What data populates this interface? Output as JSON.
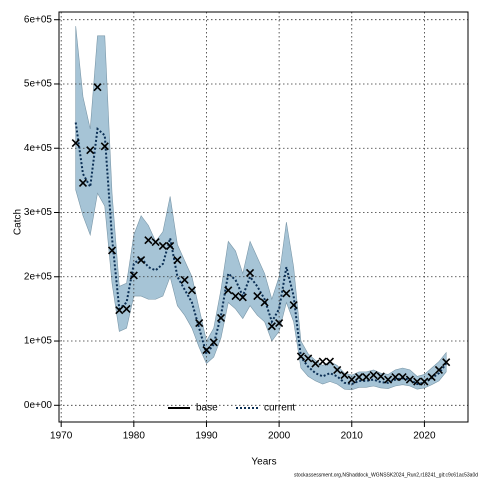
{
  "chart_data": {
    "type": "line",
    "xlabel": "Years",
    "ylabel": "Catch",
    "footer": "stockassessment.org,NShaddock_WGNSSK2024_Run2,r18241_git:c9c61ac53a0d",
    "x": [
      1972,
      1973,
      1974,
      1975,
      1976,
      1977,
      1978,
      1979,
      1980,
      1981,
      1982,
      1983,
      1984,
      1985,
      1986,
      1987,
      1988,
      1989,
      1990,
      1991,
      1992,
      1993,
      1994,
      1995,
      1996,
      1997,
      1998,
      1999,
      2000,
      2001,
      2002,
      2003,
      2004,
      2005,
      2006,
      2007,
      2008,
      2009,
      2010,
      2011,
      2012,
      2013,
      2014,
      2015,
      2016,
      2017,
      2018,
      2019,
      2020,
      2021,
      2022,
      2023
    ],
    "estimate": {
      "color": "#0b2f55",
      "dash": "dotted",
      "values": [
        440000,
        360000,
        340000,
        430000,
        420000,
        260000,
        150000,
        160000,
        220000,
        230000,
        215000,
        210000,
        220000,
        260000,
        200000,
        180000,
        160000,
        120000,
        80000,
        95000,
        140000,
        205000,
        195000,
        170000,
        200000,
        185000,
        165000,
        130000,
        150000,
        215000,
        170000,
        75000,
        60000,
        50000,
        45000,
        50000,
        45000,
        35000,
        33000,
        38000,
        38000,
        40000,
        36000,
        35000,
        40000,
        42000,
        40000,
        33000,
        35000,
        42000,
        50000,
        65000
      ]
    },
    "band": {
      "color": "#a6c4d6",
      "upper": [
        590000,
        480000,
        430000,
        575000,
        575000,
        330000,
        185000,
        190000,
        265000,
        295000,
        280000,
        255000,
        270000,
        325000,
        250000,
        225000,
        200000,
        150000,
        100000,
        120000,
        180000,
        255000,
        240000,
        205000,
        255000,
        230000,
        205000,
        165000,
        200000,
        285000,
        215000,
        100000,
        80000,
        70000,
        62000,
        68000,
        62000,
        50000,
        47000,
        52000,
        52000,
        55000,
        50000,
        48000,
        55000,
        58000,
        55000,
        45000,
        48000,
        58000,
        68000,
        82000
      ],
      "lower": [
        335000,
        295000,
        265000,
        330000,
        310000,
        190000,
        115000,
        120000,
        170000,
        170000,
        165000,
        165000,
        170000,
        200000,
        155000,
        140000,
        120000,
        90000,
        65000,
        75000,
        105000,
        160000,
        150000,
        135000,
        155000,
        140000,
        130000,
        100000,
        115000,
        160000,
        130000,
        58000,
        45000,
        38000,
        33000,
        37000,
        33000,
        25000,
        24000,
        28000,
        28000,
        30000,
        27000,
        26000,
        30000,
        32000,
        30000,
        25000,
        27000,
        32000,
        38000,
        52000
      ]
    },
    "observed": {
      "color": "#000000",
      "values": [
        408000,
        346000,
        397000,
        495000,
        403000,
        241000,
        148000,
        150000,
        202000,
        226000,
        257000,
        254000,
        248000,
        248000,
        226000,
        195000,
        179000,
        128000,
        86000,
        98000,
        136000,
        179000,
        170000,
        168000,
        206000,
        170000,
        160000,
        123000,
        128000,
        174000,
        156000,
        76000,
        73000,
        65000,
        68000,
        68000,
        55000,
        47000,
        40000,
        44000,
        44000,
        47000,
        45000,
        40000,
        44000,
        44000,
        40000,
        37000,
        37000,
        44000,
        55000,
        67000
      ]
    },
    "legend": [
      {
        "name": "base",
        "color": "#000000",
        "dash": "solid"
      },
      {
        "name": "current",
        "color": "#0b2f55",
        "dash": "dotted"
      }
    ],
    "xlim": [
      1969.7,
      2026
    ],
    "ylim": [
      -26000,
      612000
    ],
    "xticks": [
      1970,
      1980,
      1990,
      2000,
      2010,
      2020
    ],
    "yticks": [
      {
        "value": 0,
        "label": "0e+00"
      },
      {
        "value": 100000,
        "label": "1e+05"
      },
      {
        "value": 200000,
        "label": "2e+05"
      },
      {
        "value": 300000,
        "label": "3e+05"
      },
      {
        "value": 400000,
        "label": "4e+05"
      },
      {
        "value": 500000,
        "label": "5e+05"
      },
      {
        "value": 600000,
        "label": "6e+05"
      }
    ],
    "grid": true
  }
}
